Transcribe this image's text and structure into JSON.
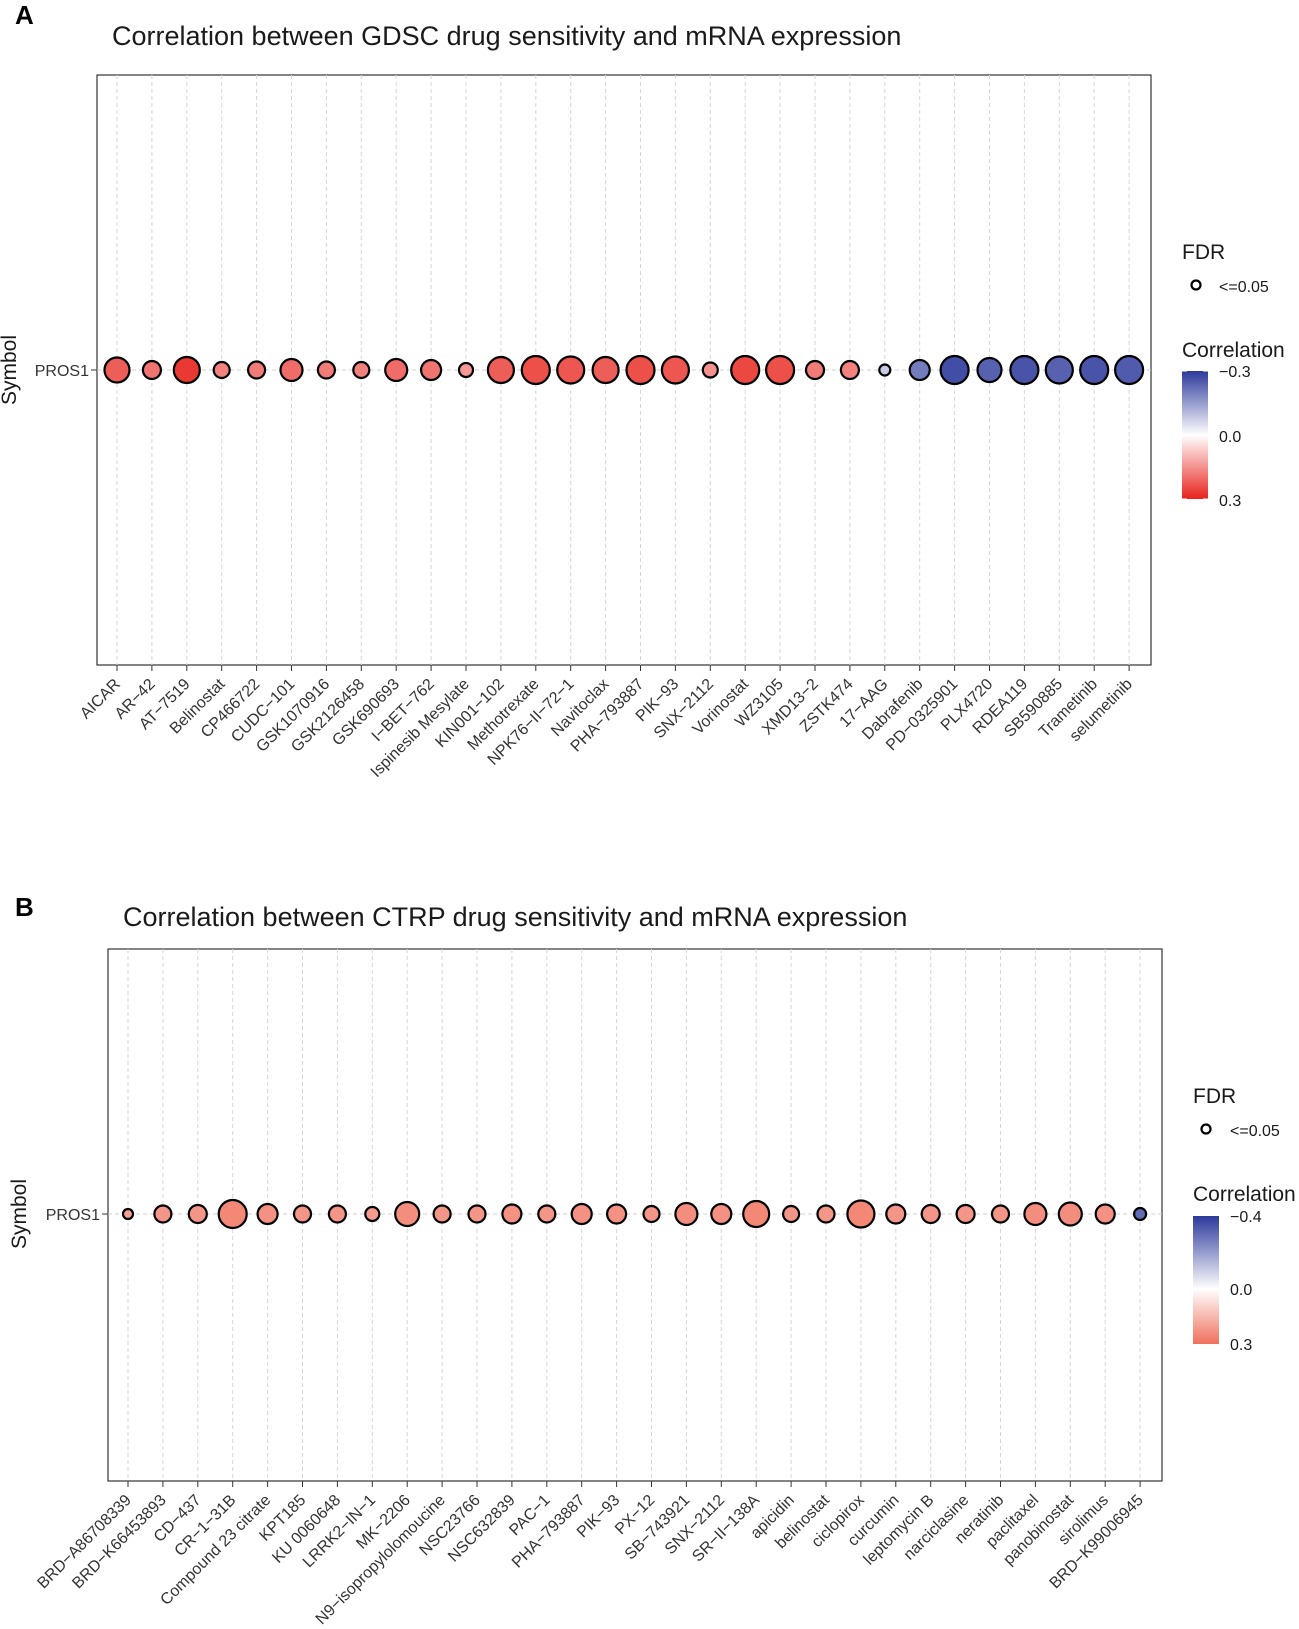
{
  "chart_data": [
    {
      "panel": "A",
      "type": "scatter",
      "title": "Correlation between GDSC drug sensitivity and mRNA expression",
      "xlabel": "",
      "ylabel": "Symbol",
      "symbol": "PROS1",
      "categories": [
        "AICAR",
        "AR−42",
        "AT−7519",
        "Belinostat",
        "CP466722",
        "CUDC−101",
        "GSK1070916",
        "GSK2126458",
        "GSK690693",
        "I−BET−762",
        "Ispinesib Mesylate",
        "KIN001−102",
        "Methotrexate",
        "NPK76−II−72−1",
        "Navitoclax",
        "PHA−793887",
        "PIK−93",
        "SNX−2112",
        "Vorinostat",
        "WZ3105",
        "XMD13−2",
        "ZSTK474",
        "17−AAG",
        "Dabrafenib",
        "PD−0325901",
        "PLX4720",
        "RDEA119",
        "SB590885",
        "Trametinib",
        "selumetinib"
      ],
      "correlation": [
        0.22,
        0.19,
        0.27,
        0.17,
        0.18,
        0.2,
        0.18,
        0.17,
        0.2,
        0.19,
        0.14,
        0.22,
        0.24,
        0.23,
        0.22,
        0.24,
        0.23,
        0.15,
        0.25,
        0.24,
        0.18,
        0.17,
        -0.08,
        -0.2,
        -0.27,
        -0.24,
        -0.26,
        -0.24,
        -0.26,
        -0.25
      ],
      "neg_log10_fdr": [
        8.5,
        5.0,
        9.0,
        4.0,
        4.5,
        7.0,
        4.5,
        4.0,
        7.0,
        6.0,
        3.0,
        9.0,
        10.0,
        9.5,
        9.0,
        10.0,
        9.5,
        3.5,
        10.0,
        10.0,
        5.0,
        5.0,
        1.5,
        6.0,
        10.0,
        8.0,
        10.0,
        9.5,
        10.0,
        10.0
      ],
      "legend": {
        "fdr_title": "FDR",
        "fdr_label": "<=0.05",
        "color_title": "Correlation",
        "color_ticks": [
          "−0.3",
          "0.0",
          "0.3"
        ],
        "color_range": [
          -0.3,
          0.3
        ],
        "low_color": "#e8231c",
        "mid_color": "#ffffff",
        "high_color": "#2d3a9c"
      }
    },
    {
      "panel": "B",
      "type": "scatter",
      "title": "Correlation between CTRP drug sensitivity and mRNA expression",
      "xlabel": "",
      "ylabel": "Symbol",
      "symbol": "PROS1",
      "categories": [
        "BRD−A86708339",
        "BRD−K66453893",
        "CD−437",
        "CR−1−31B",
        "Compound 23 citrate",
        "KPT185",
        "KU 0060648",
        "LRRK2−IN−1",
        "MK−2206",
        "N9−isopropylolomoucine",
        "NSC23766",
        "NSC632839",
        "PAC−1",
        "PHA−793887",
        "PIK−93",
        "PX−12",
        "SB−743921",
        "SNX−2112",
        "SR−II−138A",
        "apicidin",
        "belinostat",
        "ciclopirox",
        "curcumin",
        "leptomycin B",
        "narciclasine",
        "neratinib",
        "paclitaxel",
        "panobinostat",
        "sirolimus",
        "BRD−K99006945"
      ],
      "correlation": [
        0.2,
        0.22,
        0.22,
        0.25,
        0.23,
        0.22,
        0.22,
        0.21,
        0.24,
        0.22,
        0.22,
        0.23,
        0.22,
        0.23,
        0.23,
        0.22,
        0.24,
        0.23,
        0.25,
        0.22,
        0.22,
        0.25,
        0.22,
        0.22,
        0.22,
        0.22,
        0.24,
        0.24,
        0.23,
        -0.3
      ],
      "neg_log10_fdr": [
        1.0,
        4.5,
        5.0,
        10.0,
        6.0,
        4.5,
        4.5,
        3.0,
        8.0,
        4.5,
        4.5,
        5.5,
        4.5,
        6.0,
        5.5,
        4.0,
        7.0,
        6.0,
        9.0,
        4.0,
        4.5,
        9.5,
        5.5,
        5.0,
        5.0,
        4.5,
        7.0,
        7.5,
        5.5,
        2.0
      ],
      "legend": {
        "fdr_title": "FDR",
        "fdr_label": "<=0.05",
        "color_title": "Correlation",
        "color_ticks": [
          "−0.4",
          "0.0",
          "0.3"
        ],
        "color_range": [
          -0.4,
          0.3
        ],
        "low_color": "#f0705c",
        "mid_color": "#ffffff",
        "high_color": "#2d3a9c"
      }
    }
  ]
}
